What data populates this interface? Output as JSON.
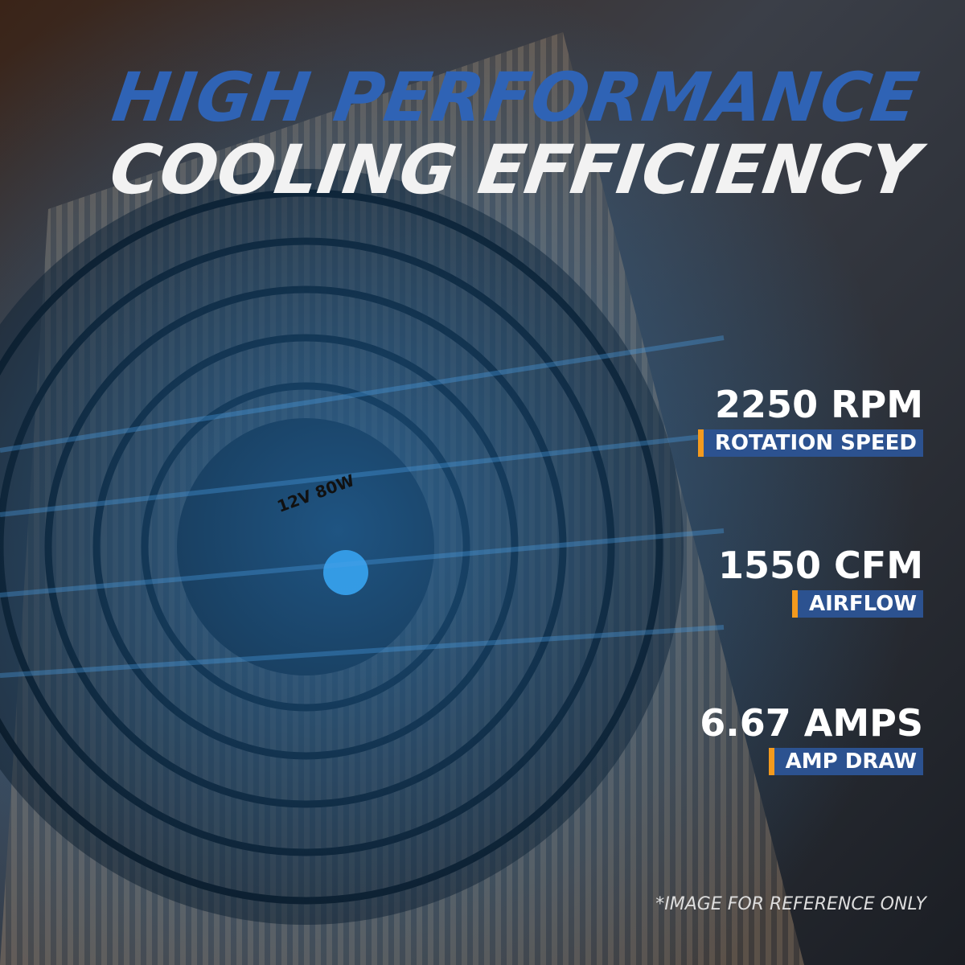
{
  "title": {
    "line1": "HIGH PERFORMANCE",
    "line2": "COOLING EFFICIENCY"
  },
  "fan_label": "12V 80W",
  "specs": [
    {
      "value": "2250 RPM",
      "label": "ROTATION SPEED"
    },
    {
      "value": "1550 CFM",
      "label": "AIRFLOW"
    },
    {
      "value": "6.67 AMPS",
      "label": "AMP DRAW"
    }
  ],
  "note": "*IMAGE FOR REFERENCE ONLY"
}
